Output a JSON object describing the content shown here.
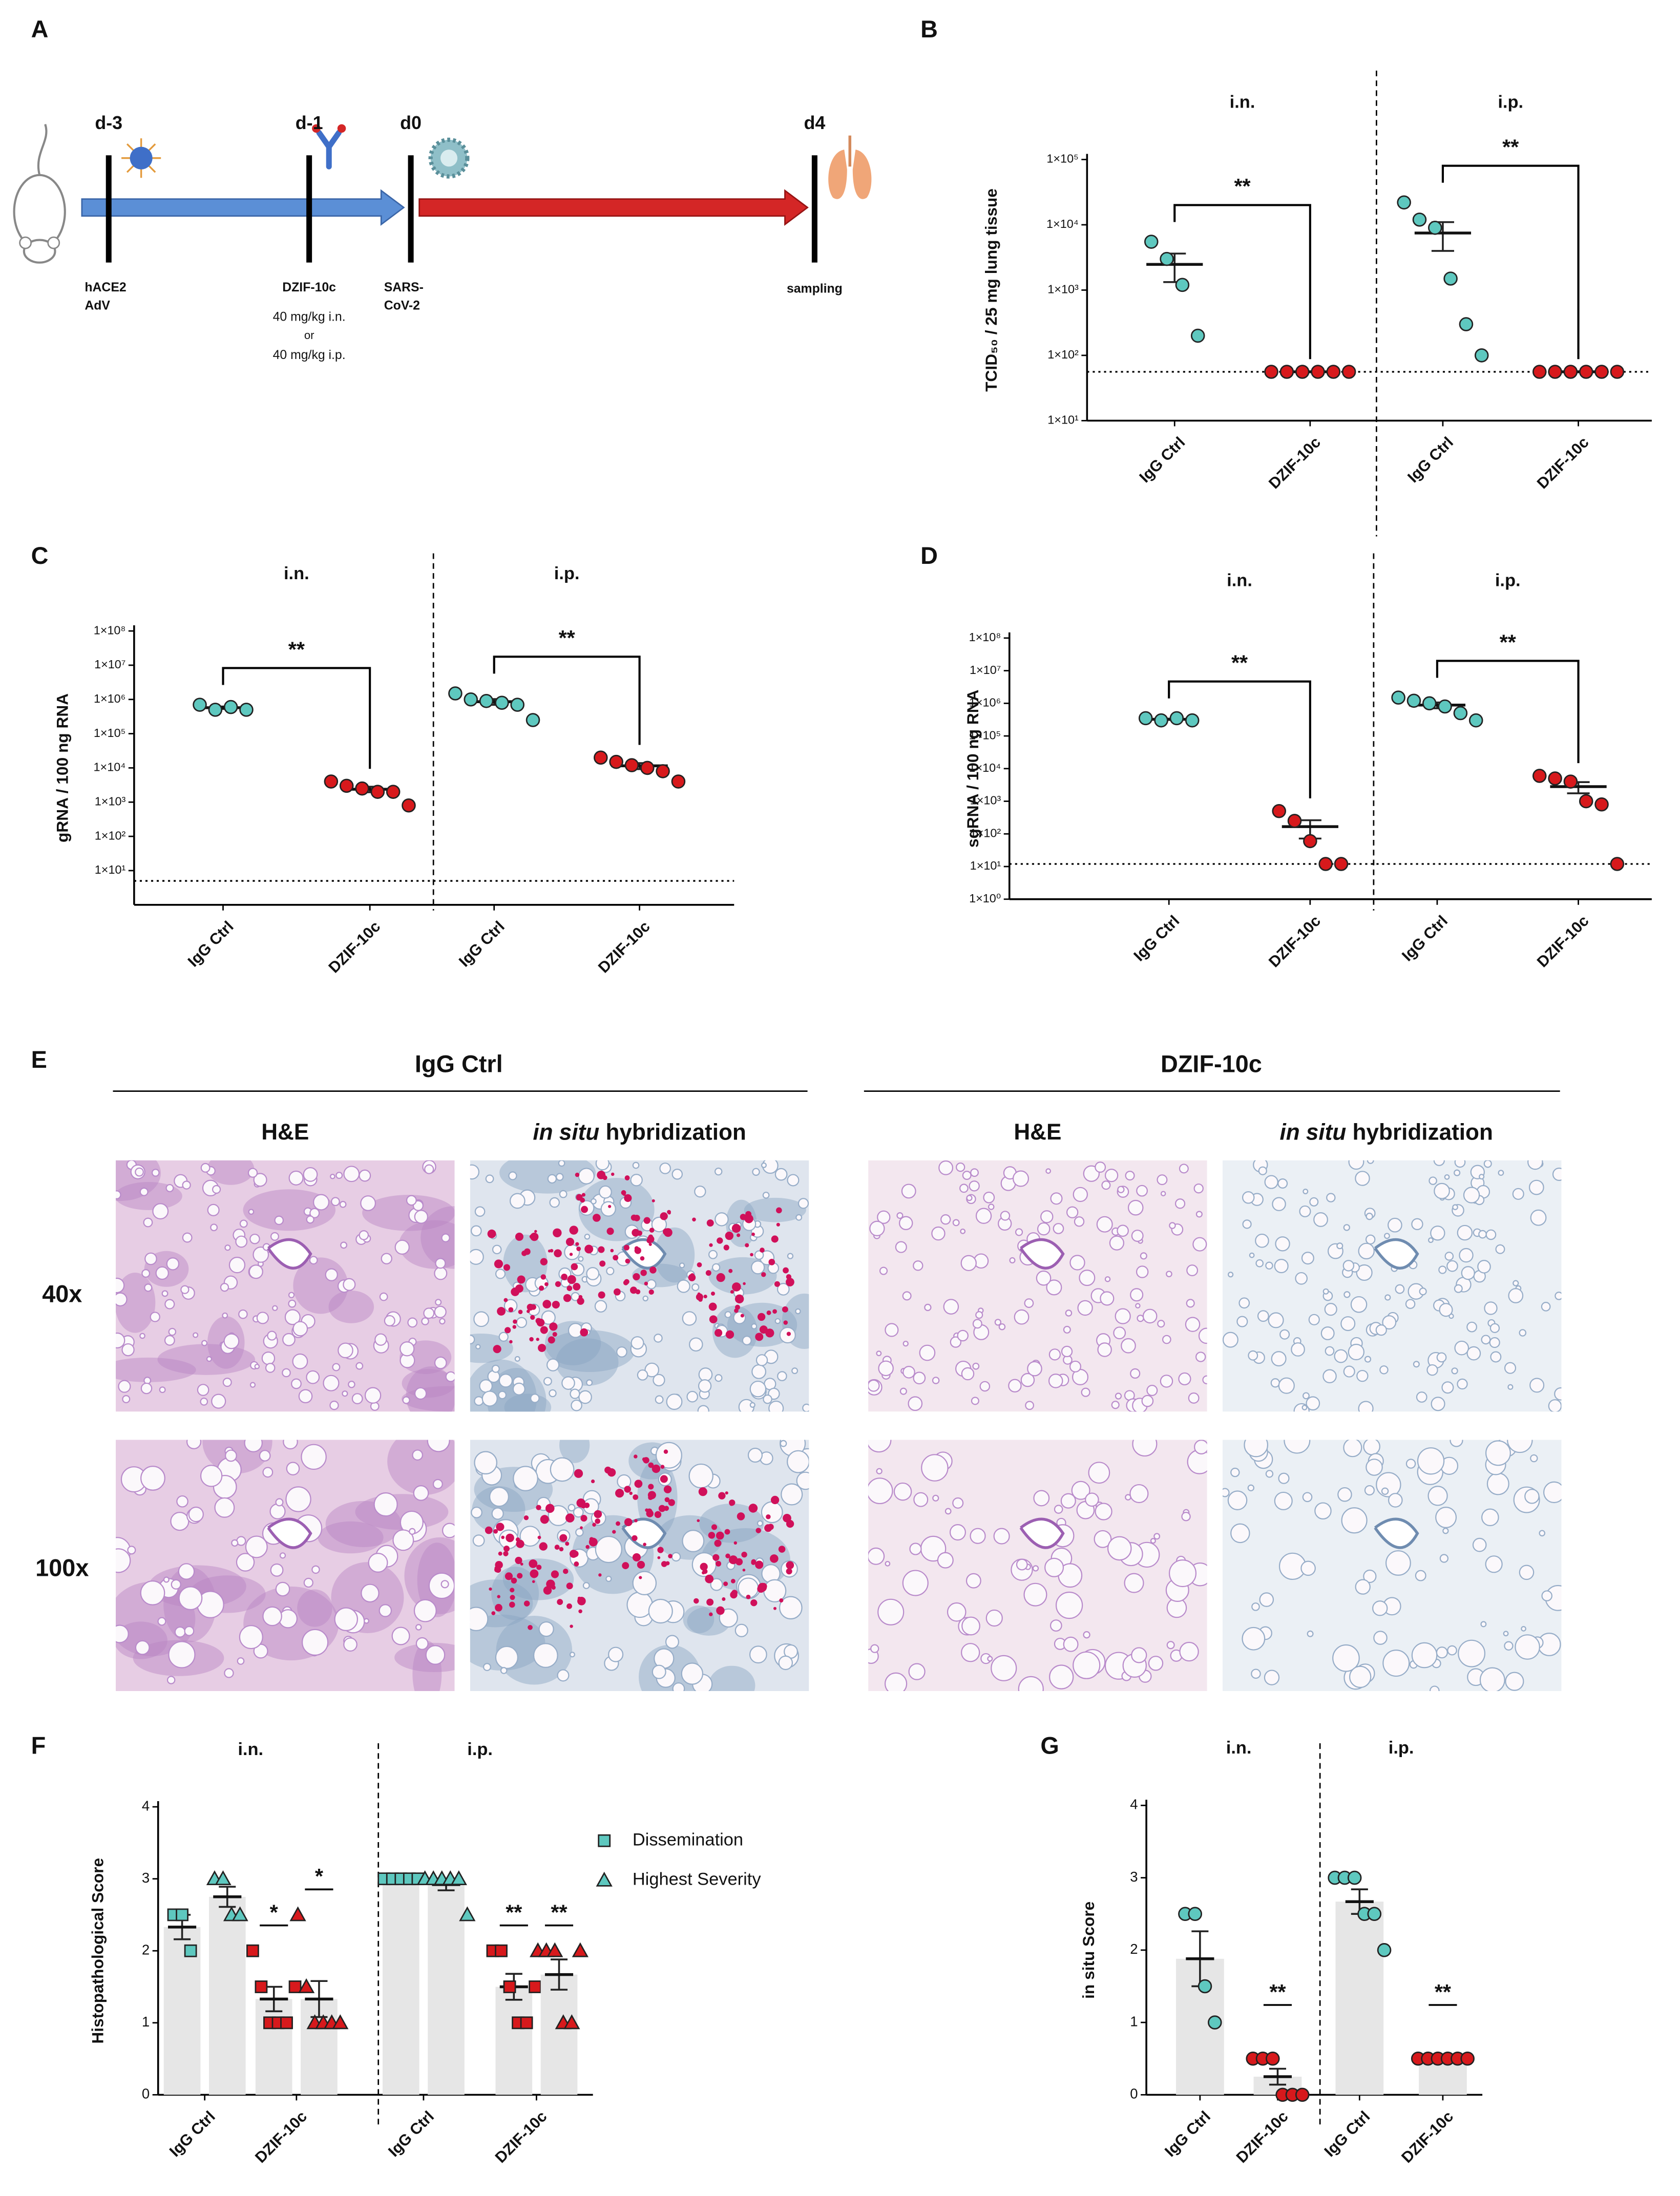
{
  "panel_labels": [
    "A",
    "B",
    "C",
    "D",
    "E",
    "F",
    "G"
  ],
  "timeline": {
    "days": [
      "d-3",
      "d-1",
      "d0",
      "d4"
    ],
    "notes": [
      [
        "hACE2",
        "AdV"
      ],
      [
        "DZIF-10c",
        "40 mg/kg i.n.",
        "or",
        "40 mg/kg i.p."
      ],
      [
        "SARS-",
        "CoV-2"
      ],
      [
        "sampling"
      ]
    ]
  },
  "histology": {
    "groups": [
      "IgG Ctrl",
      "DZIF-10c"
    ],
    "stains": [
      {
        "text": "H&E"
      },
      {
        "italic": "in situ",
        "text": "hybridization"
      }
    ],
    "magnifications": [
      "40x",
      "100x"
    ]
  },
  "chart_data": [
    {
      "type": "scatter",
      "ylabel": "TCID₅₀ / 25 mg lung tissue",
      "sections": [
        "i.n.",
        "i.p."
      ],
      "categories": [
        "IgG Ctrl",
        "DZIF-10c",
        "IgG Ctrl",
        "DZIF-10c"
      ],
      "colors": [
        "#5ec8bf",
        "#d7191c",
        "#5ec8bf",
        "#d7191c"
      ],
      "log": true,
      "ylim": [
        10,
        100000
      ],
      "yticks": [
        {
          "value": 10,
          "label": "1×10¹"
        },
        {
          "value": 100,
          "label": "1×10²"
        },
        {
          "value": 1000,
          "label": "1×10³"
        },
        {
          "value": 10000,
          "label": "1×10⁴"
        },
        {
          "value": 100000,
          "label": "1×10⁵"
        }
      ],
      "lod": 56,
      "brackets": [
        "**",
        "**"
      ],
      "series": [
        {
          "marker": "circle",
          "points": [
            [
              5500,
              3000,
              1200,
              200
            ],
            [
              56,
              56,
              56,
              56,
              56,
              56
            ],
            [
              22000,
              12000,
              9000,
              1500,
              300,
              100
            ],
            [
              56,
              56,
              56,
              56,
              56,
              56
            ]
          ],
          "means": [
            2475,
            56,
            7483,
            56
          ],
          "sems": [
            1150,
            0,
            3500,
            0
          ]
        }
      ]
    },
    {
      "type": "scatter",
      "ylabel": "gRNA / 100 ng RNA",
      "sections": [
        "i.n.",
        "i.p."
      ],
      "categories": [
        "IgG Ctrl",
        "DZIF-10c",
        "IgG Ctrl",
        "DZIF-10c"
      ],
      "colors": [
        "#5ec8bf",
        "#d7191c",
        "#5ec8bf",
        "#d7191c"
      ],
      "log": true,
      "ylim": [
        1,
        100000000
      ],
      "yticks": [
        {
          "value": 10,
          "label": "1×10¹"
        },
        {
          "value": 100,
          "label": "1×10²"
        },
        {
          "value": 1000,
          "label": "1×10³"
        },
        {
          "value": 10000,
          "label": "1×10⁴"
        },
        {
          "value": 100000,
          "label": "1×10⁵"
        },
        {
          "value": 1000000,
          "label": "1×10⁶"
        },
        {
          "value": 10000000,
          "label": "1×10⁷"
        },
        {
          "value": 100000000,
          "label": "1×10⁸"
        }
      ],
      "lod": 5,
      "brackets": [
        "**",
        "**"
      ],
      "series": [
        {
          "marker": "circle",
          "points": [
            [
              700000,
              500000,
              600000,
              500000
            ],
            [
              4000,
              3000,
              2500,
              2000,
              2000,
              800
            ],
            [
              1500000,
              1000000,
              900000,
              800000,
              700000,
              250000
            ],
            [
              20000,
              15000,
              12000,
              10000,
              8000,
              4000
            ]
          ],
          "means": [
            575000,
            2383,
            858333,
            11500
          ],
          "sems": [
            48000,
            440,
            165000,
            2300
          ]
        }
      ]
    },
    {
      "type": "scatter",
      "ylabel": "sgRNA / 100 ng RNA",
      "sections": [
        "i.n.",
        "i.p."
      ],
      "categories": [
        "IgG Ctrl",
        "DZIF-10c",
        "IgG Ctrl",
        "DZIF-10c"
      ],
      "colors": [
        "#5ec8bf",
        "#d7191c",
        "#5ec8bf",
        "#d7191c"
      ],
      "log": true,
      "ylim": [
        1,
        100000000
      ],
      "yticks": [
        {
          "value": 1,
          "label": "1×10⁰"
        },
        {
          "value": 10,
          "label": "1×10¹"
        },
        {
          "value": 100,
          "label": "1×10²"
        },
        {
          "value": 1000,
          "label": "1×10³"
        },
        {
          "value": 10000,
          "label": "1×10⁴"
        },
        {
          "value": 100000,
          "label": "1×10⁵"
        },
        {
          "value": 1000000,
          "label": "1×10⁶"
        },
        {
          "value": 10000000,
          "label": "1×10⁷"
        },
        {
          "value": 100000000,
          "label": "1×10⁸"
        }
      ],
      "lod": 12,
      "brackets": [
        "**",
        "**"
      ],
      "series": [
        {
          "marker": "circle",
          "points": [
            [
              350000,
              300000,
              350000,
              300000
            ],
            [
              500,
              250,
              60,
              12,
              12
            ],
            [
              1500000,
              1200000,
              1000000,
              800000,
              500000,
              300000
            ],
            [
              6000,
              5000,
              4000,
              1000,
              800,
              12
            ]
          ],
          "means": [
            325000,
            167,
            883333,
            2802
          ],
          "sems": [
            14000,
            95,
            180000,
            1050
          ]
        }
      ]
    },
    {
      "type": "bar",
      "ylabel": "Histopathological Score",
      "sections": [
        "i.n.",
        "i.p."
      ],
      "categories": [
        "IgG Ctrl",
        "DZIF-10c",
        "IgG Ctrl",
        "DZIF-10c"
      ],
      "colors": [
        "#5ec8bf",
        "#d7191c",
        "#5ec8bf",
        "#d7191c"
      ],
      "bar_color": "#e6e6e6",
      "ylim": [
        0,
        4
      ],
      "yticks": [
        0,
        1,
        2,
        3,
        4
      ],
      "series": [
        {
          "name": "Dissemination",
          "marker": "square",
          "points": [
            [
              2.5,
              2.5,
              2
            ],
            [
              2,
              1.5,
              1,
              1,
              1,
              1.5
            ],
            [
              3,
              3,
              3,
              3,
              3
            ],
            [
              2,
              2,
              1.5,
              1,
              1,
              1.5
            ]
          ],
          "means": [
            2.33,
            1.33,
            3,
            1.5
          ],
          "sems": [
            0.17,
            0.17,
            0,
            0.18
          ],
          "significance": [
            null,
            "*",
            null,
            "**"
          ]
        },
        {
          "name": "Highest Severity",
          "marker": "triangle",
          "points": [
            [
              3,
              3,
              2.5,
              2.5
            ],
            [
              2.5,
              1.5,
              1,
              1,
              1,
              1
            ],
            [
              3,
              3,
              3,
              3,
              3,
              2.5
            ],
            [
              2,
              2,
              2,
              1,
              1,
              2
            ]
          ],
          "means": [
            2.75,
            1.33,
            2.92,
            1.67
          ],
          "sems": [
            0.14,
            0.25,
            0.08,
            0.21
          ],
          "significance": [
            null,
            "*",
            null,
            "**"
          ]
        }
      ]
    },
    {
      "type": "bar",
      "ylabel": "in situ Score",
      "sections": [
        "i.n.",
        "i.p."
      ],
      "categories": [
        "IgG Ctrl",
        "DZIF-10c",
        "IgG Ctrl",
        "DZIF-10c"
      ],
      "colors": [
        "#5ec8bf",
        "#d7191c",
        "#5ec8bf",
        "#d7191c"
      ],
      "bar_color": "#e6e6e6",
      "ylim": [
        0,
        4
      ],
      "yticks": [
        0,
        1,
        2,
        3,
        4
      ],
      "series": [
        {
          "marker": "circle",
          "points": [
            [
              2.5,
              2.5,
              1.5,
              1
            ],
            [
              0.5,
              0.5,
              0.5,
              0,
              0,
              0
            ],
            [
              3,
              3,
              3,
              2.5,
              2.5,
              2
            ],
            [
              0.5,
              0.5,
              0.5,
              0.5,
              0.5,
              0.5
            ]
          ],
          "means": [
            1.88,
            0.25,
            2.67,
            0.5
          ],
          "sems": [
            0.38,
            0.11,
            0.17,
            0
          ],
          "significance": [
            null,
            "**",
            null,
            "**"
          ]
        }
      ]
    }
  ]
}
